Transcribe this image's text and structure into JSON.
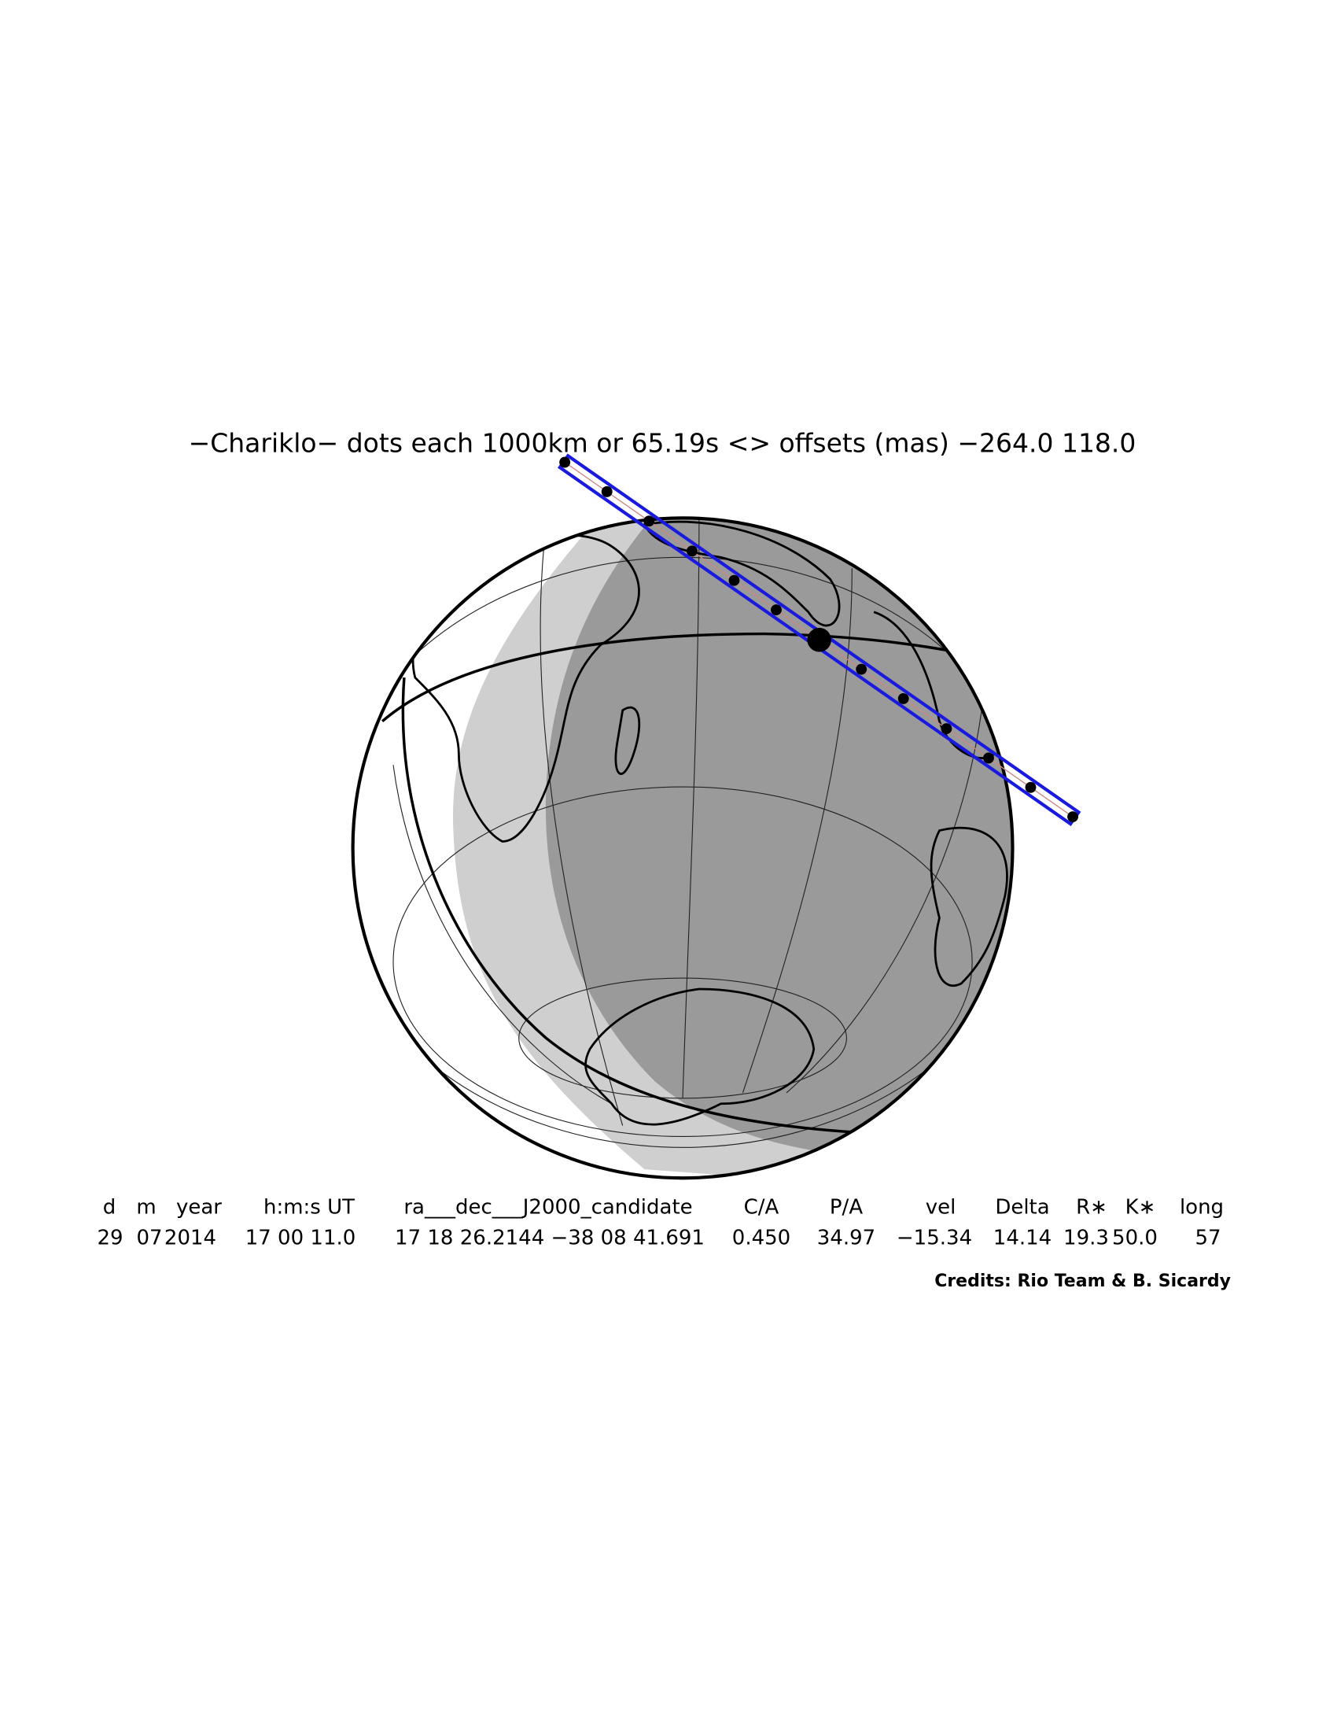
{
  "title": "−Chariklo− dots each 1000km or 65.19s <> offsets (mas) −264.0  118.0",
  "table": {
    "headers": [
      "d",
      "m",
      "year",
      "h:m:s UT",
      "ra___dec___J2000_candidate",
      "C/A",
      "P/A",
      "vel",
      "Delta",
      "R∗",
      "K∗",
      "long"
    ],
    "rows": [
      [
        "29",
        "07",
        "2014",
        "17 00 11.0",
        "17 18 26.2144 −38 08 41.691",
        "0.450",
        "34.97",
        "−15.34",
        "14.14",
        "19.3",
        "50.0",
        "57"
      ]
    ]
  },
  "credits": "Credits: Rio Team & B. Sicardy"
}
